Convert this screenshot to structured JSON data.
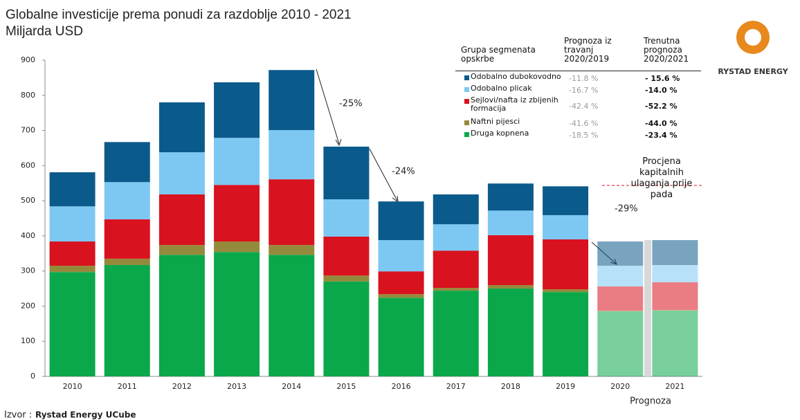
{
  "chart_data": {
    "type": "stacked_bar",
    "title": "Globalne investicije prema ponudi za razdoblje 2010 - 2021",
    "subtitle": "Miljarda USD",
    "categories": [
      "2010",
      "2011",
      "2012",
      "2013",
      "2014",
      "2015",
      "2016",
      "2017",
      "2018",
      "2019",
      "2020",
      "2021"
    ],
    "series": [
      {
        "name": "Druga kopnena",
        "color": "#0aa84a",
        "values": [
          297,
          317,
          346,
          354,
          346,
          270,
          224,
          244,
          250,
          240,
          185,
          187
        ]
      },
      {
        "name": "Naftni pijesci",
        "color": "#948a3c",
        "values": [
          18,
          18,
          28,
          30,
          28,
          17,
          10,
          8,
          10,
          8,
          2,
          2
        ]
      },
      {
        "name": "Sejlovi/nafta iz zbijenih formacija",
        "color": "#d9121f",
        "values": [
          69,
          112,
          144,
          161,
          187,
          111,
          65,
          106,
          142,
          142,
          69,
          79
        ]
      },
      {
        "name": "Odobalno plicak",
        "color": "#7cc8f2",
        "values": [
          100,
          106,
          120,
          134,
          140,
          106,
          89,
          75,
          70,
          69,
          59,
          49
        ]
      },
      {
        "name": "Odobalno dubokovodno",
        "color": "#0b5a8c",
        "values": [
          97,
          114,
          142,
          158,
          171,
          150,
          110,
          85,
          77,
          82,
          69,
          71
        ]
      }
    ],
    "ylim": [
      0,
      900
    ],
    "yticks": [
      0,
      100,
      200,
      300,
      400,
      500,
      600,
      700,
      800,
      900
    ],
    "legend_table": {
      "header": [
        "Grupa segmenata opskrbe",
        "Prognoza iz travanj 2020/2019",
        "Trenutna prognoza 2020/2021"
      ],
      "rows": [
        [
          "-11.8 %",
          "- 15.6 %"
        ],
        [
          "-16.7 %",
          "-14.0 %"
        ],
        [
          "-42.4 %",
          "-52.2 %"
        ],
        [
          "-41.6 %",
          "-44.0 %"
        ],
        [
          "-18.5 %",
          "-23.4 %"
        ]
      ]
    },
    "annotations": {
      "drop_2015": "-25%",
      "drop_2016": "-24%",
      "drop_2020": "-29%",
      "pre_crash": "Procjena kapitalnih ulaganja prije pada",
      "forecast": "Prognoza"
    },
    "source_prefix": "Izvor :",
    "source": "Rystad Energy UCube",
    "logo": "RYSTAD ENERGY"
  }
}
